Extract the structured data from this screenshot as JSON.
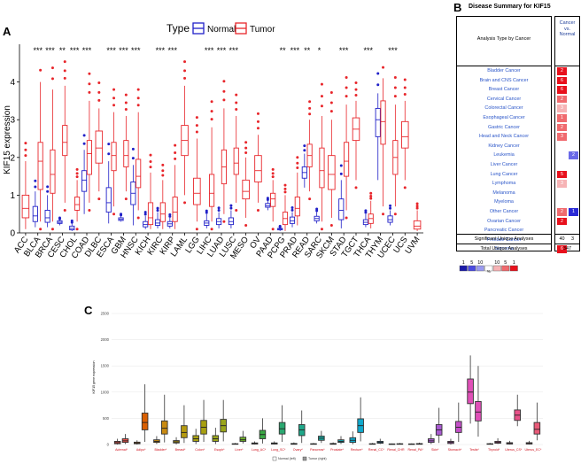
{
  "panel_labels": {
    "a": "A",
    "b": "B",
    "c": "C"
  },
  "chart_data": [
    {
      "type": "box",
      "panel": "A",
      "legend_title": "Type",
      "legend": [
        {
          "name": "Normal",
          "color": "#2020c8"
        },
        {
          "name": "Tumor",
          "color": "#e8262b"
        }
      ],
      "ylabel": "KIF15 expression",
      "ylim": [
        0,
        5
      ],
      "yticks": [
        0,
        1,
        2,
        3,
        4
      ],
      "categories": [
        "ACC",
        "BLCA",
        "BRCA",
        "CESC",
        "CHOL",
        "COAD",
        "DLBC",
        "ESCA",
        "GBM",
        "HNSC",
        "KICH",
        "KIRC",
        "KIRP",
        "LAML",
        "LGG",
        "LIHC",
        "LUAD",
        "LUSC",
        "MESO",
        "OV",
        "PAAD",
        "PCPG",
        "PRAD",
        "READ",
        "SARC",
        "SKCM",
        "STAD",
        "TGCT",
        "THCA",
        "THYM",
        "UCEC",
        "UCS",
        "UVM"
      ],
      "significance": [
        "",
        "***",
        "***",
        "**",
        "***",
        "***",
        "",
        "***",
        "***",
        "***",
        "",
        "***",
        "***",
        "",
        "",
        "***",
        "***",
        "***",
        "",
        "",
        "",
        "**",
        "***",
        "**",
        "*",
        "",
        "***",
        "",
        "***",
        "",
        "***",
        "",
        ""
      ],
      "normal": [
        null,
        [
          0.15,
          0.3,
          0.45,
          0.7,
          1.1
        ],
        [
          0.15,
          0.28,
          0.4,
          0.6,
          1.0
        ],
        [
          0.2,
          0.25,
          0.28,
          0.32,
          0.35
        ],
        [
          0.05,
          0.08,
          0.12,
          0.18,
          0.25
        ],
        [
          0.5,
          1.1,
          1.4,
          1.65,
          2.2
        ],
        null,
        [
          0.25,
          0.55,
          0.8,
          1.2,
          1.9
        ],
        [
          0.3,
          0.33,
          0.36,
          0.4,
          0.45
        ],
        [
          0.2,
          0.75,
          1.05,
          1.35,
          1.8
        ],
        [
          0.1,
          0.16,
          0.22,
          0.3,
          0.45
        ],
        [
          0.12,
          0.2,
          0.26,
          0.35,
          0.55
        ],
        [
          0.12,
          0.18,
          0.24,
          0.3,
          0.4
        ],
        null,
        null,
        [
          0.12,
          0.2,
          0.26,
          0.32,
          0.5
        ],
        [
          0.12,
          0.22,
          0.3,
          0.38,
          0.55
        ],
        [
          0.12,
          0.22,
          0.3,
          0.4,
          0.6
        ],
        null,
        null,
        [
          0.6,
          0.68,
          0.72,
          0.78,
          0.85
        ],
        [
          0.05,
          0.08,
          0.1,
          0.12,
          0.15
        ],
        [
          0.15,
          0.25,
          0.32,
          0.42,
          0.55
        ],
        [
          1.2,
          1.45,
          1.6,
          1.75,
          2.1
        ],
        [
          0.25,
          0.32,
          0.38,
          0.44,
          0.55
        ],
        null,
        [
          0.12,
          0.35,
          0.6,
          0.9,
          1.4
        ],
        null,
        [
          0.15,
          0.22,
          0.28,
          0.35,
          0.5
        ],
        [
          1.4,
          2.55,
          3.0,
          3.3,
          3.7
        ],
        [
          0.2,
          0.28,
          0.35,
          0.45,
          0.6
        ],
        null,
        null
      ],
      "tumor": [
        [
          0.1,
          0.4,
          0.65,
          1.0,
          1.9
        ],
        [
          0.3,
          1.15,
          1.9,
          2.4,
          4.0
        ],
        [
          0.3,
          1.05,
          1.55,
          2.2,
          3.8
        ],
        [
          0.8,
          2.05,
          2.4,
          2.85,
          3.9
        ],
        [
          0.3,
          0.6,
          0.75,
          0.95,
          1.4
        ],
        [
          0.8,
          1.55,
          2.1,
          2.45,
          3.5
        ],
        [
          1.1,
          1.85,
          2.25,
          2.7,
          3.3
        ],
        [
          0.7,
          1.65,
          2.05,
          2.4,
          3.2
        ],
        [
          1.1,
          1.75,
          2.05,
          2.45,
          3.1
        ],
        [
          0.6,
          1.2,
          1.5,
          1.95,
          3.2
        ],
        [
          0.1,
          0.22,
          0.4,
          0.8,
          1.6
        ],
        [
          0.1,
          0.3,
          0.5,
          0.8,
          1.4
        ],
        [
          0.1,
          0.3,
          0.55,
          0.95,
          1.8
        ],
        [
          1.0,
          2.05,
          2.45,
          2.85,
          3.9
        ],
        [
          0.3,
          0.75,
          1.05,
          1.45,
          2.5
        ],
        [
          0.3,
          0.7,
          1.05,
          1.55,
          2.8
        ],
        [
          0.5,
          1.3,
          1.75,
          2.2,
          3.3
        ],
        [
          0.8,
          1.55,
          1.85,
          2.25,
          3.1
        ],
        [
          0.4,
          0.9,
          1.1,
          1.4,
          2.0
        ],
        [
          0.8,
          1.35,
          1.65,
          2.05,
          2.6
        ],
        [
          0.3,
          0.7,
          0.9,
          1.05,
          1.4
        ],
        [
          0.05,
          0.22,
          0.38,
          0.55,
          1.0
        ],
        [
          0.2,
          0.45,
          0.65,
          0.95,
          1.6
        ],
        [
          1.1,
          1.75,
          2.05,
          2.35,
          3.0
        ],
        [
          0.3,
          1.2,
          1.65,
          2.25,
          3.1
        ],
        [
          0.4,
          1.15,
          1.55,
          2.05,
          3.0
        ],
        [
          0.6,
          1.5,
          1.9,
          2.4,
          3.4
        ],
        [
          1.4,
          2.45,
          2.75,
          3.05,
          3.5
        ],
        [
          0.12,
          0.25,
          0.38,
          0.5,
          0.85
        ],
        [
          0.7,
          2.35,
          2.95,
          3.5,
          4.1
        ],
        [
          0.7,
          1.55,
          2.0,
          2.45,
          3.4
        ],
        [
          1.4,
          2.25,
          2.55,
          2.95,
          3.5
        ],
        [
          0.05,
          0.1,
          0.18,
          0.32,
          0.6
        ]
      ]
    },
    {
      "type": "table",
      "panel": "B",
      "title": "Disease Summary for KIF15",
      "header_left": "Analysis Type by Cancer",
      "header_right": [
        "Cancer",
        "vs.",
        "Normal"
      ],
      "rows": [
        {
          "label": "Bladder Cancer",
          "c1": "2",
          "c1_color": "#e8101c",
          "c2": "",
          "c2_color": ""
        },
        {
          "label": "Brain and CNS Cancer",
          "c1": "6",
          "c1_color": "#e8101c",
          "c2": "",
          "c2_color": ""
        },
        {
          "label": "Breast Cancer",
          "c1": "6",
          "c1_color": "#e8101c",
          "c2": "",
          "c2_color": ""
        },
        {
          "label": "Cervical Cancer",
          "c1": "2",
          "c1_color": "#f06a6e",
          "c2": "",
          "c2_color": ""
        },
        {
          "label": "Colorectal Cancer",
          "c1": "3",
          "c1_color": "#f6b3b5",
          "c2": "",
          "c2_color": ""
        },
        {
          "label": "Esophageal Cancer",
          "c1": "1",
          "c1_color": "#f06a6e",
          "c2": "",
          "c2_color": ""
        },
        {
          "label": "Gastric Cancer",
          "c1": "2",
          "c1_color": "#f06a6e",
          "c2": "",
          "c2_color": ""
        },
        {
          "label": "Head and Neck Cancer",
          "c1": "3",
          "c1_color": "#f06a6e",
          "c2": "",
          "c2_color": ""
        },
        {
          "label": "Kidney Cancer",
          "c1": "",
          "c1_color": "",
          "c2": "",
          "c2_color": ""
        },
        {
          "label": "Leukemia",
          "c1": "",
          "c1_color": "",
          "c2": "2",
          "c2_color": "#6a6ae8"
        },
        {
          "label": "Liver Cancer",
          "c1": "",
          "c1_color": "",
          "c2": "",
          "c2_color": ""
        },
        {
          "label": "Lung Cancer",
          "c1": "5",
          "c1_color": "#e8101c",
          "c2": "",
          "c2_color": ""
        },
        {
          "label": "Lymphoma",
          "c1": "3",
          "c1_color": "#f6b3b5",
          "c2": "",
          "c2_color": ""
        },
        {
          "label": "Melanoma",
          "c1": "",
          "c1_color": "",
          "c2": "",
          "c2_color": ""
        },
        {
          "label": "Myeloma",
          "c1": "",
          "c1_color": "",
          "c2": "",
          "c2_color": ""
        },
        {
          "label": "Other Cancer",
          "c1": "2",
          "c1_color": "#f06a6e",
          "c2": "1",
          "c2_color": "#2a2ad6"
        },
        {
          "label": "Ovarian Cancer",
          "c1": "2",
          "c1_color": "#e8101c",
          "c2": "",
          "c2_color": ""
        },
        {
          "label": "Pancreatic Cancer",
          "c1": "",
          "c1_color": "",
          "c2": "",
          "c2_color": ""
        },
        {
          "label": "Prostate Cancer",
          "c1": "",
          "c1_color": "",
          "c2": "",
          "c2_color": ""
        },
        {
          "label": "Sarcoma",
          "c1": "6",
          "c1_color": "#e8101c",
          "c2": "",
          "c2_color": ""
        }
      ],
      "footer": [
        {
          "label": "Significant Unique Analyses",
          "values": [
            "40",
            "3"
          ]
        },
        {
          "label": "Total Unique Analyses",
          "values": [
            "347"
          ]
        }
      ],
      "legend_left": [
        "1",
        "5",
        "10"
      ],
      "legend_right": [
        "10",
        "5",
        "1"
      ],
      "legend_sub": "%",
      "legend_colors": [
        "#1a1aa8",
        "#4a4ae0",
        "#9a9af0",
        "#ffffff",
        "#f6b3b5",
        "#f06a6e",
        "#e8101c"
      ]
    },
    {
      "type": "box",
      "panel": "C",
      "ylabel": "KIF15 gene expression",
      "ylim": [
        0,
        2500
      ],
      "yticks": [
        0,
        500,
        1000,
        1500,
        2000,
        2500
      ],
      "categories": [
        "Adrenal*",
        "Adipo*",
        "Bladder*",
        "Breast*",
        "Colon*",
        "Esoph*",
        "Liver*",
        "Lung_AC*",
        "Lung_SC*",
        "Ovary*",
        "Pancreas*",
        "Prostate*",
        "Rectum*",
        "Renal_CC*",
        "Renal_CHR",
        "Renal_PA*",
        "Skin*",
        "Stomach*",
        "Testis*",
        "Thyroid*",
        "Uterus_CS*",
        "Uterus_EC*"
      ],
      "legend": [
        {
          "name": "Normal (left)"
        },
        {
          "name": "Tumor (right)"
        }
      ],
      "colors": [
        "#e8524a",
        "#d95f02",
        "#c98a10",
        "#b59a10",
        "#a8a010",
        "#9aa51a",
        "#6fb02a",
        "#3aa845",
        "#2aa870",
        "#1fa88a",
        "#1aa8a0",
        "#12a8b8",
        "#10a8cc",
        "#2090d0",
        "#5b7bd8",
        "#8a6ad8",
        "#a85ad0",
        "#c450c8",
        "#e050b8",
        "#e850a0",
        "#e85088",
        "#e85a78"
      ],
      "normal": [
        [
          0,
          15,
          35,
          60,
          110
        ],
        [
          0,
          15,
          30,
          45,
          80
        ],
        [
          10,
          40,
          60,
          90,
          160
        ],
        [
          5,
          30,
          50,
          75,
          140
        ],
        [
          10,
          60,
          110,
          170,
          300
        ],
        [
          10,
          60,
          110,
          170,
          320
        ],
        [
          0,
          5,
          10,
          15,
          30
        ],
        [
          0,
          10,
          20,
          30,
          60
        ],
        [
          0,
          10,
          20,
          30,
          60
        ],
        [
          0,
          5,
          10,
          20,
          40
        ],
        [
          0,
          5,
          10,
          15,
          30
        ],
        [
          0,
          5,
          12,
          20,
          40
        ],
        [
          5,
          40,
          80,
          130,
          250
        ],
        [
          0,
          5,
          10,
          15,
          30
        ],
        [
          0,
          5,
          8,
          12,
          20
        ],
        [
          0,
          5,
          8,
          12,
          20
        ],
        [
          10,
          40,
          70,
          110,
          200
        ],
        [
          0,
          20,
          40,
          60,
          110
        ],
        [
          400,
          780,
          1000,
          1250,
          1700
        ],
        [
          0,
          5,
          10,
          15,
          30
        ],
        [
          0,
          10,
          20,
          35,
          70
        ],
        [
          0,
          10,
          20,
          35,
          70
        ]
      ],
      "tumor": [
        [
          10,
          40,
          70,
          110,
          200
        ],
        [
          50,
          280,
          420,
          600,
          1150
        ],
        [
          40,
          200,
          310,
          450,
          950
        ],
        [
          30,
          130,
          230,
          360,
          750
        ],
        [
          50,
          200,
          330,
          460,
          850
        ],
        [
          60,
          240,
          360,
          480,
          850
        ],
        [
          20,
          60,
          90,
          140,
          260
        ],
        [
          20,
          110,
          190,
          270,
          500
        ],
        [
          50,
          200,
          300,
          420,
          750
        ],
        [
          30,
          170,
          280,
          380,
          650
        ],
        [
          30,
          80,
          120,
          160,
          260
        ],
        [
          10,
          40,
          60,
          90,
          160
        ],
        [
          60,
          230,
          360,
          490,
          900
        ],
        [
          10,
          25,
          40,
          60,
          110
        ],
        [
          0,
          5,
          10,
          15,
          30
        ],
        [
          0,
          5,
          10,
          18,
          35
        ],
        [
          30,
          180,
          280,
          380,
          700
        ],
        [
          50,
          230,
          330,
          440,
          800
        ],
        [
          150,
          450,
          620,
          820,
          1500
        ],
        [
          10,
          25,
          40,
          60,
          120
        ],
        [
          350,
          460,
          560,
          660,
          950
        ],
        [
          80,
          200,
          290,
          420,
          800
        ]
      ]
    }
  ]
}
